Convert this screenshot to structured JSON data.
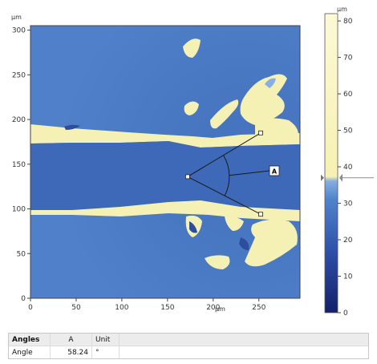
{
  "window": {
    "unit_top_left": "µm",
    "unit_x": "µm",
    "unit_colorbar": "µm"
  },
  "chart_data": {
    "type": "heatmap",
    "title": "",
    "xlabel": "µm",
    "ylabel": "µm",
    "xlim": [
      0,
      295
    ],
    "ylim": [
      0,
      305
    ],
    "x_ticks": [
      0,
      50,
      100,
      150,
      200,
      250
    ],
    "y_ticks": [
      0,
      50,
      100,
      150,
      200,
      250,
      300
    ],
    "colorbar": {
      "range": [
        0,
        82
      ],
      "ticks": [
        0,
        10,
        20,
        30,
        40,
        50,
        60,
        70,
        80
      ],
      "colors_low_to_high": [
        "#14206a",
        "#2d4ea8",
        "#4f84cc",
        "#86aee0",
        "#fbf6be"
      ],
      "threshold_marker": 37
    },
    "angle_measurement": {
      "label": "A",
      "vertex": [
        172,
        136
      ],
      "point_1": [
        252,
        185
      ],
      "point_2": [
        252,
        94
      ],
      "angle_deg": 58.24
    }
  },
  "results_table": {
    "headers": [
      "Angles",
      "A",
      "Unit"
    ],
    "rows": [
      {
        "name": "Angle",
        "value": "58.24",
        "unit": "°"
      }
    ]
  },
  "colors": {
    "surface_blue": "#4f80c9",
    "flake_yellow": "#f5f1b4",
    "groove_blue": "#3e69b8"
  }
}
